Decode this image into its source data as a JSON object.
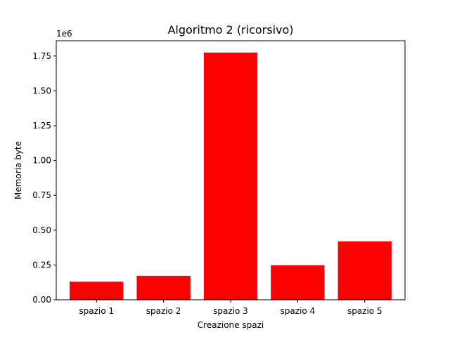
{
  "chart_data": {
    "type": "bar",
    "title": "Algoritmo 2 (ricorsivo)",
    "xlabel": "Creazione spazi",
    "ylabel": "Memoria byte",
    "categories": [
      "spazio 1",
      "spazio 2",
      "spazio 3",
      "spazio 4",
      "spazio 5"
    ],
    "values": [
      130000,
      172000,
      1775000,
      248000,
      420000
    ],
    "ylim": [
      0,
      1860000
    ],
    "yticks": [
      0,
      250000,
      500000,
      750000,
      1000000,
      1250000,
      1500000,
      1750000
    ],
    "ytick_labels": [
      "0.00",
      "0.25",
      "0.50",
      "0.75",
      "1.00",
      "1.25",
      "1.50",
      "1.75"
    ],
    "y_multiplier": "1e6",
    "bar_color": "#ff0000",
    "grid": false,
    "legend": "none"
  }
}
